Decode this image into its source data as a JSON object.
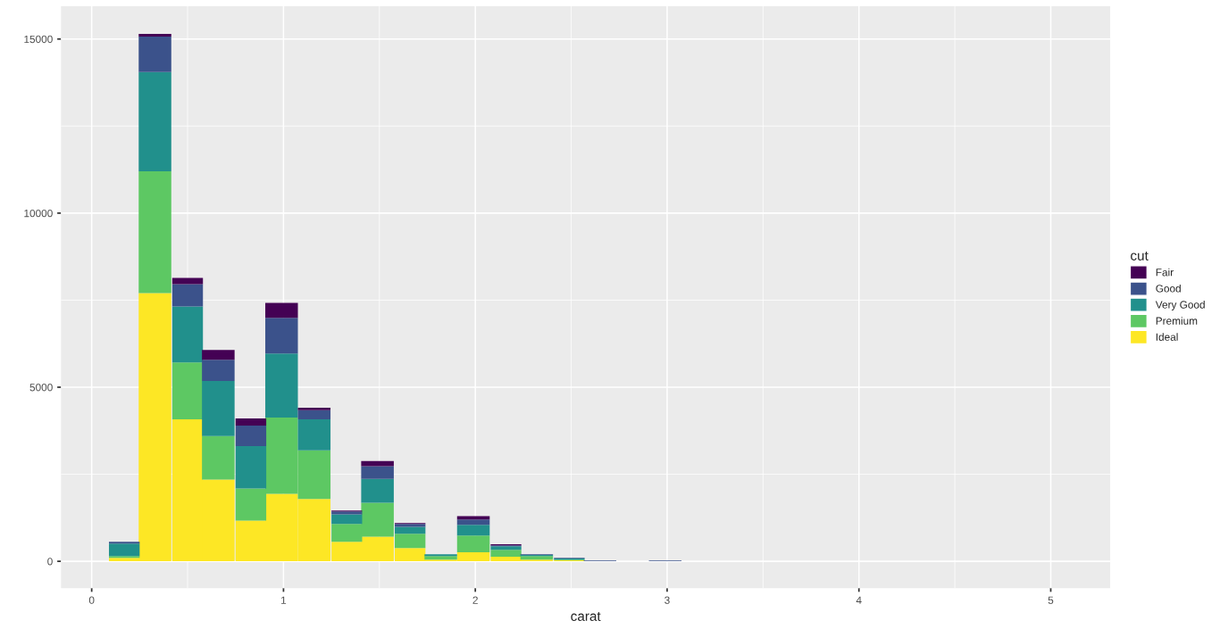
{
  "chart_data": {
    "type": "bar",
    "xlabel": "carat",
    "legend_title": "cut",
    "stacked": true,
    "legend": "right",
    "grid": true,
    "x": [
      0.17,
      0.33,
      0.5,
      0.66,
      0.83,
      0.99,
      1.16,
      1.33,
      1.49,
      1.66,
      1.82,
      1.99,
      2.16,
      2.32,
      2.49,
      2.65,
      2.82,
      2.99
    ],
    "series": [
      {
        "name": "Ideal",
        "color": "#fde725",
        "values": [
          100,
          7700,
          4080,
          2350,
          1170,
          1940,
          1790,
          560,
          710,
          380,
          50,
          260,
          130,
          50,
          30,
          0,
          0,
          0
        ]
      },
      {
        "name": "Premium",
        "color": "#5dc863",
        "values": [
          50,
          3500,
          1630,
          1250,
          920,
          2190,
          1400,
          510,
          970,
          410,
          100,
          480,
          200,
          100,
          20,
          0,
          0,
          0
        ]
      },
      {
        "name": "Very Good",
        "color": "#21908c",
        "values": [
          360,
          2850,
          1610,
          1580,
          1220,
          1840,
          890,
          280,
          690,
          200,
          50,
          310,
          100,
          30,
          30,
          0,
          0,
          0
        ]
      },
      {
        "name": "Good",
        "color": "#3b528b",
        "values": [
          50,
          1020,
          640,
          610,
          590,
          1020,
          260,
          80,
          360,
          80,
          0,
          150,
          30,
          20,
          20,
          20,
          0,
          20
        ]
      },
      {
        "name": "Fair",
        "color": "#440154",
        "values": [
          0,
          80,
          180,
          280,
          200,
          430,
          70,
          30,
          150,
          30,
          0,
          100,
          30,
          0,
          0,
          0,
          0,
          0
        ]
      }
    ],
    "xlim": [
      -0.16,
      5.31
    ],
    "ylim": [
      -770,
      15940
    ],
    "xticks": [
      0,
      1,
      2,
      3,
      4,
      5
    ],
    "yticks": [
      0,
      5000,
      10000,
      15000
    ]
  }
}
